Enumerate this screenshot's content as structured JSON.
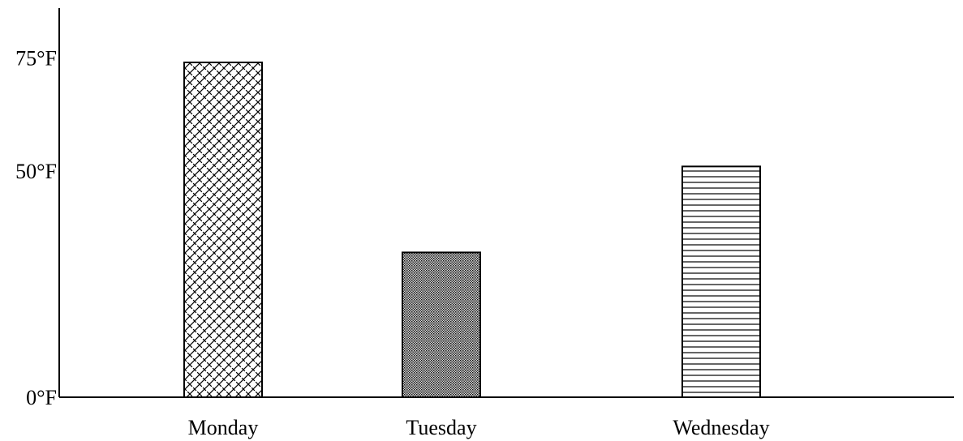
{
  "chart_data": {
    "type": "bar",
    "title": "",
    "xlabel": "",
    "ylabel": "",
    "categories": [
      "Monday",
      "Tuesday",
      "Wednesday"
    ],
    "values": [
      74,
      32,
      51
    ],
    "ylim": [
      0,
      86
    ],
    "yticks": [
      {
        "value": 0,
        "label": "0°F"
      },
      {
        "value": 50,
        "label": "50°F"
      },
      {
        "value": 75,
        "label": "75°F"
      }
    ],
    "grid": false,
    "legend": "none",
    "bar_patterns": [
      "crosshatch",
      "dense-dots",
      "horizontal-lines"
    ]
  },
  "colors": {
    "stroke": "#000000",
    "background": "#ffffff"
  }
}
